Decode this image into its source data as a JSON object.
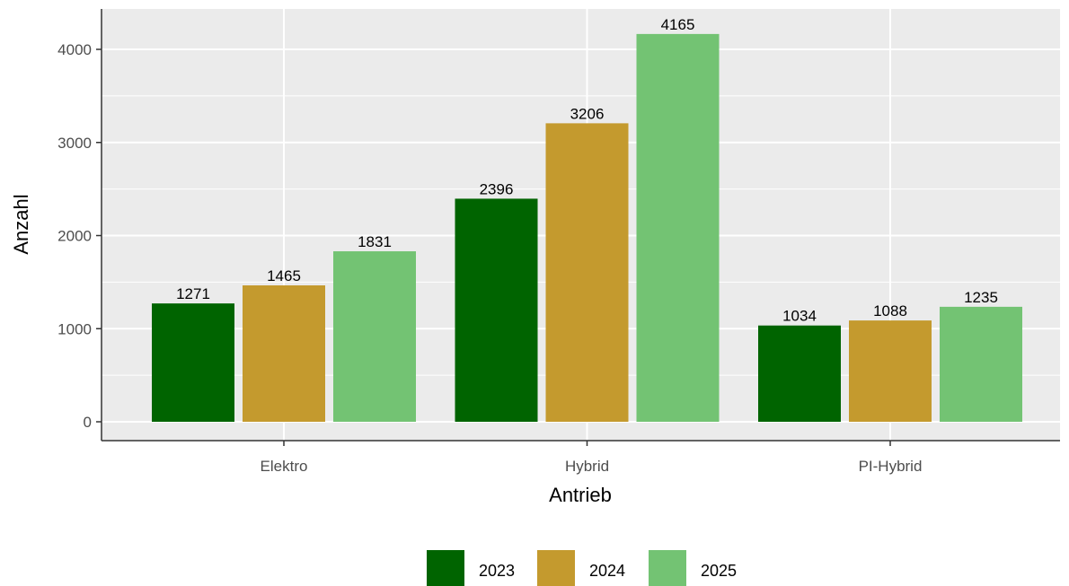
{
  "chart_data": {
    "type": "bar",
    "xlabel": "Antrieb",
    "ylabel": "Anzahl",
    "categories": [
      "Elektro",
      "Hybrid",
      "PI-Hybrid"
    ],
    "series": [
      {
        "name": "2023",
        "values": [
          1271,
          2396,
          1034
        ],
        "color": "#006400"
      },
      {
        "name": "2024",
        "values": [
          1465,
          3206,
          1088
        ],
        "color": "#C49A2E"
      },
      {
        "name": "2025",
        "values": [
          1831,
          4165,
          1235
        ],
        "color": "#73C373"
      }
    ],
    "ylim": [
      0,
      4165
    ],
    "yticks": [
      0,
      1000,
      2000,
      3000,
      4000
    ],
    "grid": true,
    "legend_position": "bottom",
    "panel_background": "#EBEBEB"
  }
}
